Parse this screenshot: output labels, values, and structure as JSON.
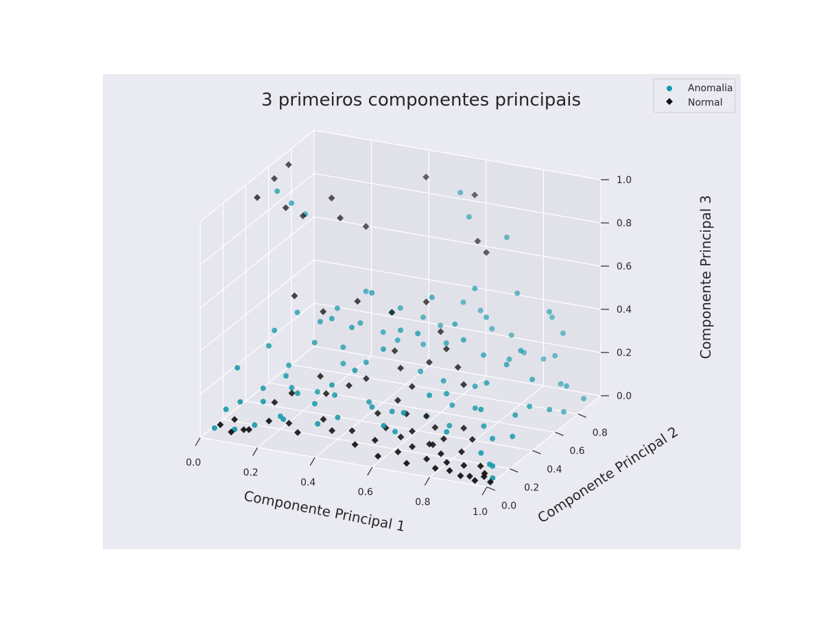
{
  "chart_data": {
    "type": "scatter",
    "projection": "3d",
    "title": "3 primeiros componentes principais",
    "xlabel": "Componente Principal 1",
    "ylabel": "Componente Principal 2",
    "zlabel": "Componente Principal 3",
    "xlim": [
      0,
      1
    ],
    "ylim": [
      0,
      1
    ],
    "zlim": [
      0,
      1
    ],
    "xticks": [
      "0.0",
      "0.2",
      "0.4",
      "0.6",
      "0.8",
      "1.0"
    ],
    "yticks": [
      "0.0",
      "0.2",
      "0.4",
      "0.6",
      "0.8"
    ],
    "zticks": [
      "0.0",
      "0.2",
      "0.4",
      "0.6",
      "0.8",
      "1.0"
    ],
    "grid": true,
    "legend_position": "top-right",
    "series": [
      {
        "name": "Anomalia",
        "marker": "circle",
        "color": "#1599a8",
        "points": [
          [
            0.05,
            0.55,
            0.92
          ],
          [
            0.08,
            0.6,
            0.85
          ],
          [
            0.12,
            0.62,
            0.8
          ],
          [
            0.55,
            0.9,
            0.88
          ],
          [
            0.6,
            0.85,
            0.8
          ],
          [
            0.72,
            0.88,
            0.72
          ],
          [
            0.68,
            0.7,
            0.55
          ],
          [
            0.78,
            0.82,
            0.5
          ],
          [
            0.9,
            0.8,
            0.45
          ],
          [
            0.88,
            0.6,
            0.35
          ],
          [
            0.4,
            0.5,
            0.55
          ],
          [
            0.05,
            0.2,
            0.25
          ],
          [
            0.1,
            0.35,
            0.3
          ],
          [
            0.15,
            0.4,
            0.2
          ],
          [
            0.2,
            0.3,
            0.15
          ],
          [
            0.25,
            0.4,
            0.1
          ],
          [
            0.3,
            0.5,
            0.2
          ],
          [
            0.35,
            0.3,
            0.15
          ],
          [
            0.4,
            0.45,
            0.25
          ],
          [
            0.45,
            0.6,
            0.3
          ],
          [
            0.5,
            0.7,
            0.25
          ],
          [
            0.55,
            0.55,
            0.2
          ],
          [
            0.6,
            0.65,
            0.3
          ],
          [
            0.65,
            0.5,
            0.2
          ],
          [
            0.7,
            0.75,
            0.4
          ],
          [
            0.75,
            0.6,
            0.3
          ],
          [
            0.8,
            0.7,
            0.25
          ],
          [
            0.85,
            0.55,
            0.3
          ],
          [
            0.9,
            0.65,
            0.2
          ],
          [
            0.95,
            0.5,
            0.15
          ],
          [
            0.97,
            0.3,
            0.1
          ],
          [
            1.0,
            0.05,
            0.02
          ],
          [
            0.98,
            0.1,
            0.05
          ],
          [
            0.95,
            0.15,
            0.03
          ],
          [
            0.9,
            0.2,
            0.05
          ],
          [
            0.92,
            0.25,
            0.1
          ],
          [
            0.85,
            0.35,
            0.1
          ],
          [
            0.8,
            0.4,
            0.15
          ],
          [
            0.75,
            0.3,
            0.1
          ],
          [
            0.7,
            0.45,
            0.12
          ],
          [
            0.65,
            0.35,
            0.1
          ],
          [
            0.6,
            0.2,
            0.08
          ],
          [
            0.55,
            0.3,
            0.12
          ],
          [
            0.5,
            0.25,
            0.15
          ],
          [
            0.45,
            0.35,
            0.12
          ],
          [
            0.4,
            0.2,
            0.1
          ],
          [
            0.35,
            0.15,
            0.08
          ],
          [
            0.3,
            0.25,
            0.12
          ],
          [
            0.25,
            0.1,
            0.1
          ],
          [
            0.2,
            0.2,
            0.06
          ],
          [
            0.15,
            0.1,
            0.05
          ],
          [
            0.1,
            0.05,
            0.04
          ],
          [
            0.03,
            0.05,
            0.03
          ],
          [
            0.05,
            0.1,
            0.1
          ],
          [
            0.08,
            0.15,
            0.12
          ],
          [
            0.12,
            0.25,
            0.15
          ],
          [
            0.18,
            0.3,
            0.2
          ],
          [
            0.22,
            0.45,
            0.3
          ],
          [
            0.28,
            0.55,
            0.25
          ],
          [
            0.32,
            0.6,
            0.35
          ],
          [
            0.38,
            0.65,
            0.3
          ],
          [
            0.42,
            0.7,
            0.4
          ],
          [
            0.48,
            0.75,
            0.35
          ],
          [
            0.52,
            0.8,
            0.3
          ],
          [
            0.58,
            0.85,
            0.4
          ],
          [
            0.62,
            0.9,
            0.35
          ],
          [
            0.68,
            0.85,
            0.3
          ],
          [
            0.72,
            0.92,
            0.25
          ],
          [
            0.78,
            0.88,
            0.2
          ],
          [
            0.82,
            0.95,
            0.15
          ],
          [
            0.88,
            0.9,
            0.2
          ],
          [
            0.92,
            0.85,
            0.1
          ],
          [
            0.96,
            0.8,
            0.12
          ],
          [
            0.9,
            0.92,
            0.3
          ],
          [
            0.85,
            0.95,
            0.35
          ],
          [
            0.6,
            0.4,
            0.45
          ],
          [
            0.5,
            0.5,
            0.4
          ],
          [
            0.45,
            0.55,
            0.45
          ],
          [
            0.35,
            0.45,
            0.4
          ],
          [
            0.3,
            0.4,
            0.45
          ],
          [
            0.65,
            0.6,
            0.42
          ],
          [
            0.7,
            0.55,
            0.38
          ],
          [
            0.55,
            0.65,
            0.5
          ],
          [
            0.48,
            0.4,
            0.35
          ],
          [
            0.42,
            0.3,
            0.28
          ],
          [
            0.36,
            0.25,
            0.22
          ],
          [
            0.26,
            0.2,
            0.18
          ],
          [
            0.16,
            0.15,
            0.14
          ],
          [
            0.76,
            0.5,
            0.2
          ],
          [
            0.82,
            0.45,
            0.25
          ],
          [
            0.86,
            0.3,
            0.2
          ],
          [
            0.94,
            0.4,
            0.15
          ],
          [
            0.98,
            0.6,
            0.1
          ],
          [
            0.99,
            0.7,
            0.05
          ],
          [
            1.0,
            0.85,
            0.05
          ],
          [
            0.6,
            0.1,
            0.15
          ],
          [
            0.65,
            0.15,
            0.2
          ],
          [
            0.7,
            0.25,
            0.25
          ],
          [
            0.72,
            0.35,
            0.22
          ],
          [
            0.78,
            0.2,
            0.12
          ],
          [
            0.1,
            0.4,
            0.35
          ],
          [
            0.14,
            0.5,
            0.4
          ],
          [
            0.2,
            0.55,
            0.35
          ],
          [
            0.24,
            0.6,
            0.4
          ],
          [
            0.3,
            0.7,
            0.45
          ]
        ]
      },
      {
        "name": "Normal",
        "marker": "diamond",
        "color": "#111111",
        "points": [
          [
            0.0,
            0.5,
            0.9
          ],
          [
            0.02,
            0.6,
            0.95
          ],
          [
            0.05,
            0.65,
            1.0
          ],
          [
            0.08,
            0.55,
            0.85
          ],
          [
            0.12,
            0.6,
            0.8
          ],
          [
            0.2,
            0.65,
            0.88
          ],
          [
            0.25,
            0.6,
            0.82
          ],
          [
            0.3,
            0.7,
            0.75
          ],
          [
            0.45,
            0.85,
            0.95
          ],
          [
            0.6,
            0.9,
            0.88
          ],
          [
            0.7,
            0.75,
            0.7
          ],
          [
            0.65,
            0.8,
            0.72
          ],
          [
            0.15,
            0.45,
            0.5
          ],
          [
            0.25,
            0.45,
            0.45
          ],
          [
            0.35,
            0.5,
            0.5
          ],
          [
            0.45,
            0.55,
            0.45
          ],
          [
            0.55,
            0.6,
            0.5
          ],
          [
            0.62,
            0.55,
            0.4
          ],
          [
            0.05,
            0.05,
            0.05
          ],
          [
            0.08,
            0.1,
            0.06
          ],
          [
            0.1,
            0.02,
            0.04
          ],
          [
            0.12,
            0.08,
            0.03
          ],
          [
            0.15,
            0.05,
            0.05
          ],
          [
            0.2,
            0.1,
            0.08
          ],
          [
            0.25,
            0.15,
            0.06
          ],
          [
            0.3,
            0.1,
            0.05
          ],
          [
            0.35,
            0.2,
            0.08
          ],
          [
            0.4,
            0.15,
            0.06
          ],
          [
            0.45,
            0.2,
            0.05
          ],
          [
            0.5,
            0.1,
            0.04
          ],
          [
            0.55,
            0.15,
            0.05
          ],
          [
            0.6,
            0.05,
            0.03
          ],
          [
            0.62,
            0.2,
            0.06
          ],
          [
            0.65,
            0.1,
            0.04
          ],
          [
            0.68,
            0.15,
            0.05
          ],
          [
            0.7,
            0.05,
            0.02
          ],
          [
            0.72,
            0.2,
            0.05
          ],
          [
            0.75,
            0.1,
            0.03
          ],
          [
            0.78,
            0.15,
            0.04
          ],
          [
            0.8,
            0.05,
            0.02
          ],
          [
            0.82,
            0.1,
            0.03
          ],
          [
            0.85,
            0.05,
            0.02
          ],
          [
            0.88,
            0.1,
            0.03
          ],
          [
            0.9,
            0.02,
            0.02
          ],
          [
            0.92,
            0.05,
            0.01
          ],
          [
            0.95,
            0.02,
            0.01
          ],
          [
            0.97,
            0.05,
            0.02
          ],
          [
            1.0,
            0.03,
            0.01
          ],
          [
            0.96,
            0.08,
            0.02
          ],
          [
            0.93,
            0.12,
            0.03
          ],
          [
            0.5,
            0.3,
            0.1
          ],
          [
            0.55,
            0.35,
            0.15
          ],
          [
            0.6,
            0.3,
            0.12
          ],
          [
            0.65,
            0.35,
            0.1
          ],
          [
            0.7,
            0.3,
            0.08
          ],
          [
            0.75,
            0.25,
            0.06
          ],
          [
            0.8,
            0.3,
            0.1
          ],
          [
            0.85,
            0.25,
            0.08
          ],
          [
            0.58,
            0.4,
            0.2
          ],
          [
            0.52,
            0.45,
            0.25
          ],
          [
            0.48,
            0.5,
            0.3
          ],
          [
            0.42,
            0.4,
            0.2
          ],
          [
            0.38,
            0.35,
            0.18
          ],
          [
            0.32,
            0.3,
            0.15
          ],
          [
            0.28,
            0.35,
            0.2
          ],
          [
            0.22,
            0.25,
            0.15
          ],
          [
            0.18,
            0.2,
            0.12
          ],
          [
            0.62,
            0.45,
            0.3
          ],
          [
            0.66,
            0.5,
            0.35
          ],
          [
            0.72,
            0.45,
            0.3
          ],
          [
            0.76,
            0.4,
            0.25
          ],
          [
            0.56,
            0.22,
            0.08
          ],
          [
            0.64,
            0.25,
            0.07
          ],
          [
            0.74,
            0.18,
            0.06
          ],
          [
            0.84,
            0.18,
            0.05
          ]
        ]
      }
    ]
  }
}
